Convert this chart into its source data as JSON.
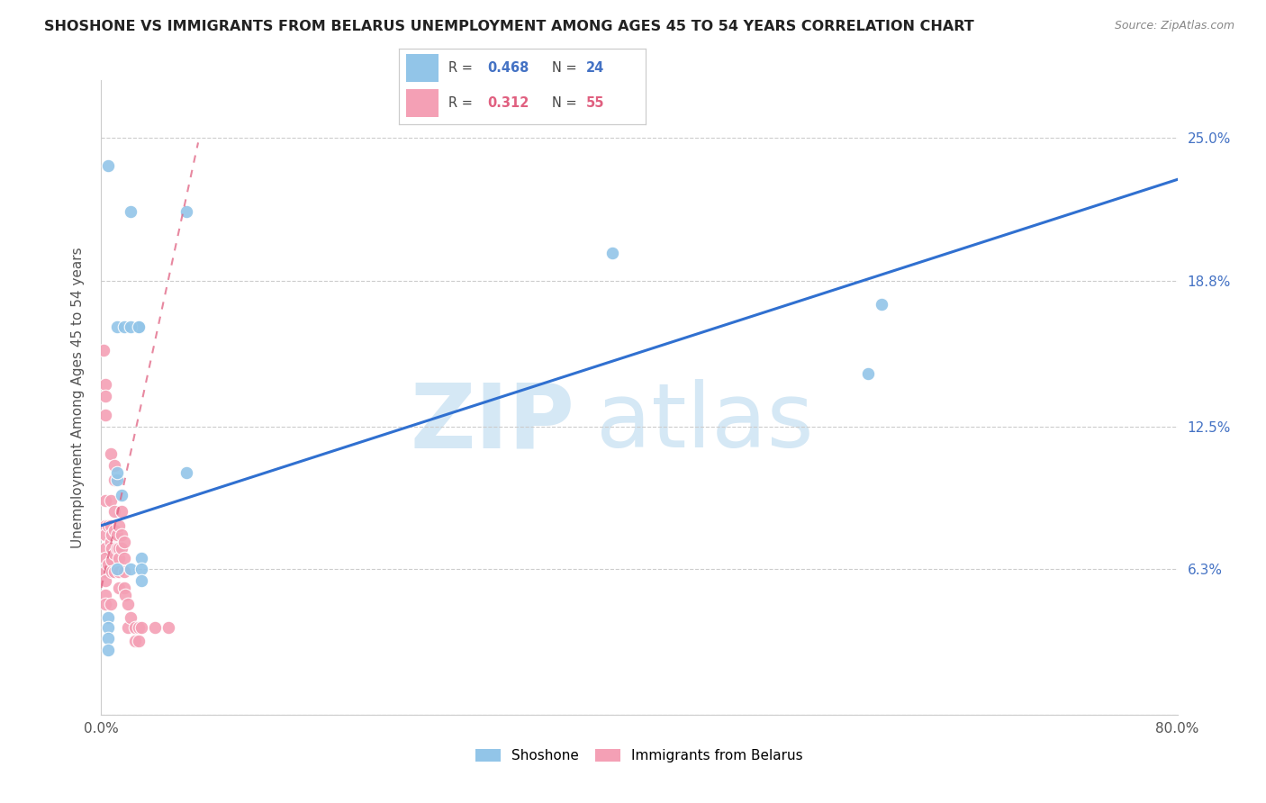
{
  "title": "SHOSHONE VS IMMIGRANTS FROM BELARUS UNEMPLOYMENT AMONG AGES 45 TO 54 YEARS CORRELATION CHART",
  "source": "Source: ZipAtlas.com",
  "ylabel": "Unemployment Among Ages 45 to 54 years",
  "xlim": [
    0.0,
    0.8
  ],
  "ylim": [
    0.0,
    0.275
  ],
  "ytick_positions": [
    0.0,
    0.063,
    0.125,
    0.188,
    0.25
  ],
  "ytick_labels_right": [
    "",
    "6.3%",
    "12.5%",
    "18.8%",
    "25.0%"
  ],
  "xtick_positions": [
    0.0,
    0.1,
    0.2,
    0.3,
    0.4,
    0.5,
    0.6,
    0.7,
    0.8
  ],
  "xtick_labels": [
    "0.0%",
    "",
    "",
    "",
    "",
    "",
    "",
    "",
    "80.0%"
  ],
  "shoshone_color": "#92C5E8",
  "belarus_color": "#F4A0B5",
  "blue_line_color": "#3070D0",
  "pink_line_color": "#E06080",
  "watermark_color": "#D5E8F5",
  "R_shoshone": 0.468,
  "N_shoshone": 24,
  "R_belarus": 0.312,
  "N_belarus": 55,
  "shoshone_x": [
    0.005,
    0.022,
    0.063,
    0.012,
    0.017,
    0.028,
    0.012,
    0.012,
    0.022,
    0.028,
    0.063,
    0.022,
    0.012,
    0.005,
    0.005,
    0.005,
    0.005,
    0.38,
    0.58,
    0.57,
    0.03,
    0.03,
    0.03,
    0.015
  ],
  "shoshone_y": [
    0.238,
    0.218,
    0.218,
    0.168,
    0.168,
    0.168,
    0.102,
    0.105,
    0.168,
    0.168,
    0.105,
    0.063,
    0.063,
    0.042,
    0.038,
    0.033,
    0.028,
    0.2,
    0.178,
    0.148,
    0.068,
    0.063,
    0.058,
    0.095
  ],
  "belarus_x": [
    0.002,
    0.003,
    0.003,
    0.003,
    0.003,
    0.003,
    0.003,
    0.003,
    0.003,
    0.003,
    0.003,
    0.003,
    0.003,
    0.005,
    0.005,
    0.007,
    0.007,
    0.007,
    0.007,
    0.007,
    0.008,
    0.008,
    0.008,
    0.008,
    0.01,
    0.01,
    0.01,
    0.01,
    0.01,
    0.01,
    0.012,
    0.012,
    0.013,
    0.013,
    0.013,
    0.013,
    0.013,
    0.015,
    0.015,
    0.015,
    0.017,
    0.017,
    0.017,
    0.017,
    0.018,
    0.02,
    0.02,
    0.022,
    0.025,
    0.025,
    0.028,
    0.028,
    0.03,
    0.04,
    0.05
  ],
  "belarus_y": [
    0.158,
    0.143,
    0.138,
    0.13,
    0.093,
    0.082,
    0.078,
    0.072,
    0.068,
    0.062,
    0.058,
    0.052,
    0.048,
    0.082,
    0.065,
    0.113,
    0.093,
    0.082,
    0.075,
    0.048,
    0.078,
    0.072,
    0.067,
    0.062,
    0.108,
    0.102,
    0.088,
    0.08,
    0.07,
    0.062,
    0.078,
    0.072,
    0.082,
    0.072,
    0.068,
    0.062,
    0.055,
    0.088,
    0.078,
    0.072,
    0.075,
    0.068,
    0.062,
    0.055,
    0.052,
    0.048,
    0.038,
    0.042,
    0.038,
    0.032,
    0.038,
    0.032,
    0.038,
    0.038,
    0.038
  ],
  "shoshone_line_x": [
    0.0,
    0.8
  ],
  "shoshone_line_y": [
    0.082,
    0.232
  ],
  "belarus_line_x": [
    0.0,
    0.072
  ],
  "belarus_line_y": [
    0.055,
    0.248
  ]
}
